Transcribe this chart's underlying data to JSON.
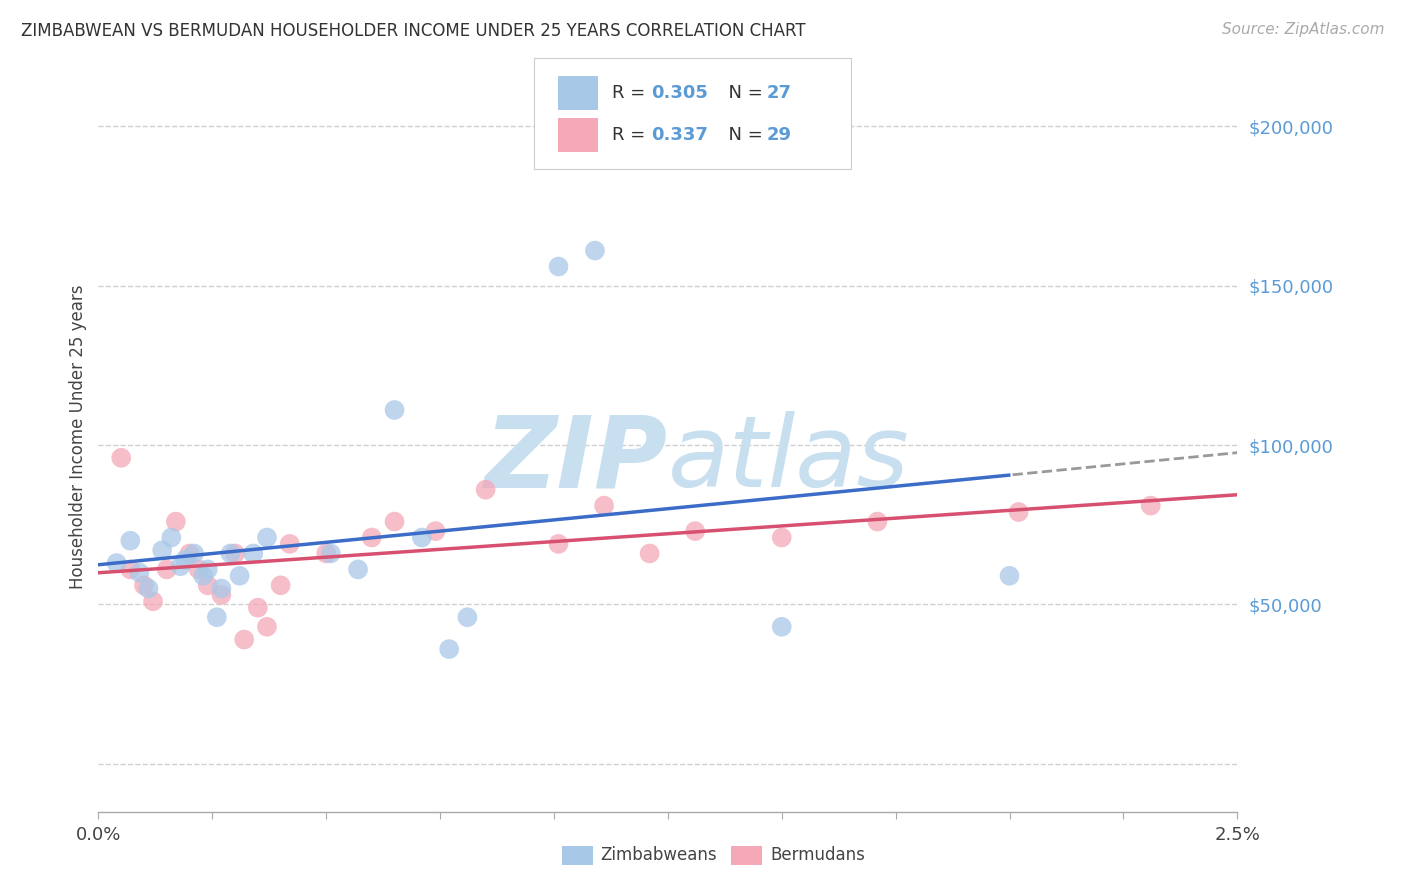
{
  "title": "ZIMBABWEAN VS BERMUDAN HOUSEHOLDER INCOME UNDER 25 YEARS CORRELATION CHART",
  "source": "Source: ZipAtlas.com",
  "ylabel": "Householder Income Under 25 years",
  "xlim": [
    0.0,
    2.5
  ],
  "ylim": [
    -15000,
    220000
  ],
  "legend_zim": "Zimbabweans",
  "legend_ber": "Bermudans",
  "r_zim": "0.305",
  "n_zim": "27",
  "r_ber": "0.337",
  "n_ber": "29",
  "color_zim": "#A8C8E8",
  "color_ber": "#F4A8B8",
  "color_zim_line": "#3A6CC8",
  "color_ber_line": "#D85070",
  "color_axis_label": "#5B9BD5",
  "color_legend_text": "#5B9BD5",
  "watermark_color": "#C8DFF0",
  "background_color": "#ffffff",
  "grid_color": "#d0d0d0",
  "zim_x": [
    0.04,
    0.07,
    0.09,
    0.11,
    0.14,
    0.16,
    0.18,
    0.19,
    0.21,
    0.23,
    0.24,
    0.26,
    0.27,
    0.29,
    0.31,
    0.34,
    0.37,
    0.51,
    0.57,
    0.65,
    0.71,
    0.77,
    0.81,
    1.01,
    1.09,
    1.5,
    2.0
  ],
  "zim_y": [
    63000,
    70000,
    60000,
    55000,
    67000,
    71000,
    62000,
    64000,
    66000,
    59000,
    61000,
    46000,
    55000,
    66000,
    59000,
    66000,
    71000,
    66000,
    61000,
    111000,
    71000,
    36000,
    46000,
    156000,
    161000,
    43000,
    59000
  ],
  "ber_x": [
    0.05,
    0.07,
    0.1,
    0.12,
    0.15,
    0.17,
    0.2,
    0.22,
    0.24,
    0.27,
    0.3,
    0.32,
    0.35,
    0.37,
    0.4,
    0.42,
    0.5,
    0.6,
    0.65,
    0.74,
    0.85,
    1.01,
    1.11,
    1.21,
    1.31,
    1.5,
    1.71,
    2.02,
    2.31
  ],
  "ber_y": [
    96000,
    61000,
    56000,
    51000,
    61000,
    76000,
    66000,
    61000,
    56000,
    53000,
    66000,
    39000,
    49000,
    43000,
    56000,
    69000,
    66000,
    71000,
    76000,
    73000,
    86000,
    69000,
    81000,
    66000,
    73000,
    71000,
    76000,
    79000,
    81000
  ],
  "yticks": [
    0,
    50000,
    100000,
    150000,
    200000
  ],
  "ytick_labels": [
    "",
    "$50,000",
    "$100,000",
    "$150,000",
    "$200,000"
  ]
}
